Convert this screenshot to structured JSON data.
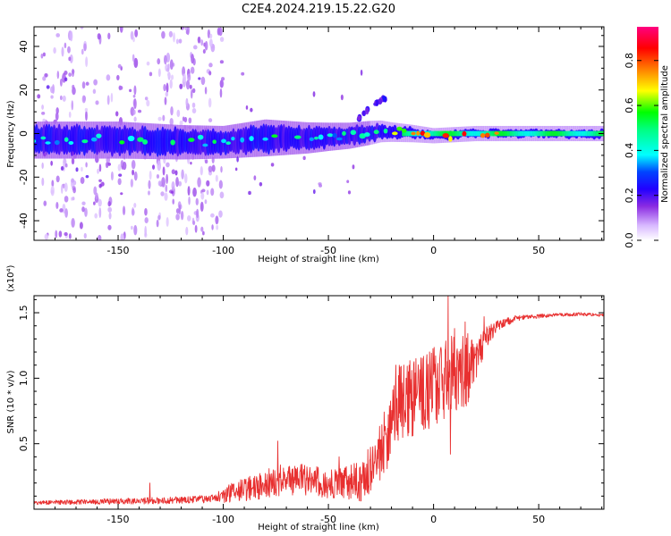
{
  "title": "C2E4.2024.219.15.22.G20",
  "colors": {
    "frame": "#000000",
    "background": "#ffffff",
    "snr_line": "#e83030",
    "colormap": [
      "#ffffff",
      "#d8b8ff",
      "#8a2be2",
      "#4b00ff",
      "#0000ff",
      "#00ffff",
      "#00ff00",
      "#ffff00",
      "#ff8000",
      "#ff0000",
      "#ff0080"
    ]
  },
  "chart_data": [
    {
      "type": "heatmap",
      "title": "C2E4.2024.219.15.22.G20",
      "xlabel": "Height of straight line (km)",
      "ylabel": "Frequency (Hz)",
      "xlim": [
        -190,
        81
      ],
      "ylim": [
        -49,
        49
      ],
      "x_ticks": [
        -150,
        -100,
        -50,
        0,
        50
      ],
      "x_tick_labels": [
        "-150",
        "-100",
        "-50",
        "0",
        "50"
      ],
      "y_ticks": [
        -40,
        -20,
        0,
        20,
        40
      ],
      "y_tick_labels": [
        "-40",
        "-20",
        "0",
        "20",
        "40"
      ],
      "colorbar": {
        "label": "Normalized spectral amplitude",
        "range": [
          0,
          0.95
        ],
        "ticks": [
          0.0,
          0.2,
          0.4,
          0.6,
          0.8
        ],
        "tick_labels": [
          "0.0",
          "0.2",
          "0.4",
          "0.6",
          "0.8"
        ]
      },
      "features": {
        "main_band_center_hz": [
          [
            -190,
            -3
          ],
          [
            -150,
            -3
          ],
          [
            -120,
            -4
          ],
          [
            -100,
            -4
          ],
          [
            -80,
            -2
          ],
          [
            -60,
            -2
          ],
          [
            -40,
            -1
          ],
          [
            -25,
            1
          ],
          [
            -10,
            0
          ],
          [
            0,
            -1
          ],
          [
            20,
            0
          ],
          [
            50,
            0
          ],
          [
            81,
            0
          ]
        ],
        "main_band_halfwidth_hz": [
          [
            -190,
            7
          ],
          [
            -150,
            7
          ],
          [
            -100,
            6
          ],
          [
            -80,
            7
          ],
          [
            -50,
            5
          ],
          [
            -30,
            4
          ],
          [
            -20,
            3
          ],
          [
            0,
            2
          ],
          [
            81,
            2
          ]
        ],
        "side_streak": [
          [
            -36,
            7
          ],
          [
            -30,
            12
          ],
          [
            -24,
            16
          ]
        ],
        "noise_columns_km": [
          -185,
          -180,
          -176,
          -172,
          -166,
          -160,
          -154,
          -148,
          -142,
          -136,
          -130,
          -127,
          -124,
          -121,
          -118,
          -115,
          -112,
          -109,
          -106,
          -102
        ]
      }
    },
    {
      "type": "line",
      "xlabel": "Height of straight line (km)",
      "ylabel": "SNR (10 * v/v)",
      "y_scale_label": "(x10⁴)",
      "xlim": [
        -190,
        81
      ],
      "ylim": [
        0,
        1.63
      ],
      "x_ticks": [
        -150,
        -100,
        -50,
        0,
        50
      ],
      "x_tick_labels": [
        "-150",
        "-100",
        "-50",
        "0",
        "50"
      ],
      "y_ticks": [
        0.5,
        1.0,
        1.5
      ],
      "y_tick_labels": [
        "0.5",
        "1.0",
        "1.5"
      ],
      "series": [
        {
          "trend": [
            [
              -190,
              0.05
            ],
            [
              -150,
              0.06
            ],
            [
              -120,
              0.07
            ],
            [
              -105,
              0.08
            ],
            [
              -95,
              0.13
            ],
            [
              -85,
              0.17
            ],
            [
              -75,
              0.22
            ],
            [
              -65,
              0.23
            ],
            [
              -55,
              0.21
            ],
            [
              -45,
              0.2
            ],
            [
              -35,
              0.21
            ],
            [
              -28,
              0.35
            ],
            [
              -22,
              0.55
            ],
            [
              -18,
              0.8
            ],
            [
              -12,
              0.85
            ],
            [
              -5,
              0.88
            ],
            [
              0,
              0.92
            ],
            [
              5,
              1.0
            ],
            [
              10,
              1.05
            ],
            [
              15,
              1.05
            ],
            [
              20,
              1.15
            ],
            [
              25,
              1.3
            ],
            [
              30,
              1.4
            ],
            [
              40,
              1.46
            ],
            [
              55,
              1.48
            ],
            [
              70,
              1.49
            ],
            [
              81,
              1.48
            ]
          ],
          "noise_amplitude": [
            [
              -190,
              0.015
            ],
            [
              -105,
              0.03
            ],
            [
              -95,
              0.08
            ],
            [
              -75,
              0.12
            ],
            [
              -45,
              0.12
            ],
            [
              -30,
              0.18
            ],
            [
              -20,
              0.28
            ],
            [
              0,
              0.32
            ],
            [
              15,
              0.3
            ],
            [
              22,
              0.12
            ],
            [
              30,
              0.04
            ],
            [
              45,
              0.015
            ],
            [
              81,
              0.012
            ]
          ],
          "spikes": [
            [
              -135,
              0.2
            ],
            [
              -74,
              0.52
            ],
            [
              -45,
              0.4
            ],
            [
              -18,
              1.1
            ],
            [
              7,
              1.63
            ],
            [
              8,
              0.42
            ],
            [
              10,
              1.38
            ],
            [
              15,
              1.43
            ],
            [
              24,
              1.47
            ]
          ]
        }
      ]
    }
  ]
}
